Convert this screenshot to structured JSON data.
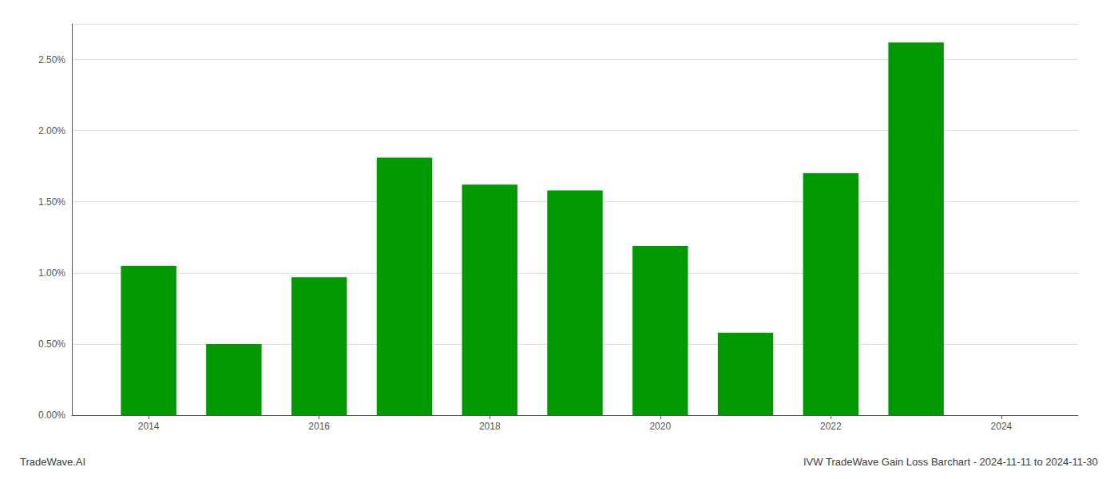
{
  "chart_data": {
    "type": "bar",
    "title": "IVW TradeWave Gain Loss Barchart - 2024-11-11 to 2024-11-30",
    "annotations": [
      "TradeWave.AI"
    ],
    "x": [
      2014,
      2015,
      2016,
      2017,
      2018,
      2019,
      2020,
      2021,
      2022,
      2023
    ],
    "values": [
      0.0105,
      0.005,
      0.0097,
      0.0181,
      0.0162,
      0.0158,
      0.0119,
      0.0058,
      0.017,
      0.0262
    ],
    "color": "#009900",
    "xlim": [
      2013.1,
      2024.9
    ],
    "xticks": [
      2014,
      2016,
      2018,
      2020,
      2022,
      2024
    ],
    "ylim": [
      0.0,
      0.0275
    ],
    "yticks": [
      {
        "value": 0.0,
        "label": "0.00%"
      },
      {
        "value": 0.005,
        "label": "0.50%"
      },
      {
        "value": 0.01,
        "label": "1.00%"
      },
      {
        "value": 0.015,
        "label": "1.50%"
      },
      {
        "value": 0.02,
        "label": "2.00%"
      },
      {
        "value": 0.025,
        "label": "2.50%"
      }
    ],
    "grid": true
  }
}
